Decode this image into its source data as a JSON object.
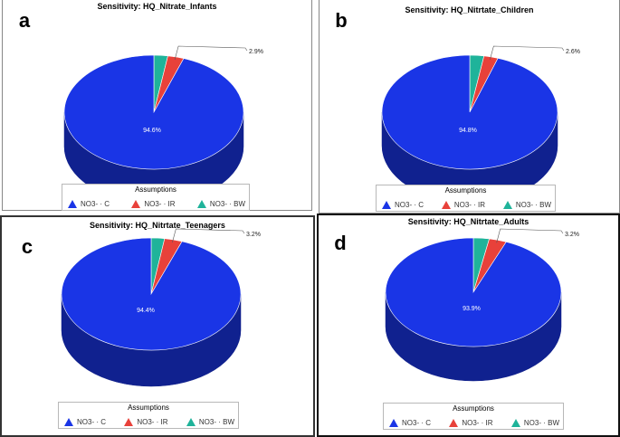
{
  "chart_data": [
    {
      "type": "pie",
      "panel_letter": "a",
      "title": "Sensitivity: HQ_Nitrate_Infants",
      "legend_title": "Assumptions",
      "slices": [
        {
          "label": "NO3- · C",
          "value": 94.6,
          "color": "#1a35e6",
          "data_label": "94.6%"
        },
        {
          "label": "NO3- · IR",
          "value": 2.9,
          "color": "#e8413a",
          "data_label": "2.9%"
        },
        {
          "label": "NO3- · BW",
          "value": 2.5,
          "color": "#1fb39a",
          "data_label": ""
        }
      ]
    },
    {
      "type": "pie",
      "panel_letter": "b",
      "title": "Sensitivity: HQ_Nitrtate_Children",
      "legend_title": "Assumptions",
      "slices": [
        {
          "label": "NO3- · C",
          "value": 94.8,
          "color": "#1a35e6",
          "data_label": "94.8%"
        },
        {
          "label": "NO3- · IR",
          "value": 2.6,
          "color": "#e8413a",
          "data_label": "2.6%"
        },
        {
          "label": "NO3- · BW",
          "value": 2.6,
          "color": "#1fb39a",
          "data_label": ""
        }
      ]
    },
    {
      "type": "pie",
      "panel_letter": "c",
      "title": "Sensitivity: HQ_Nitrtate_Teenagers",
      "legend_title": "Assumptions",
      "slices": [
        {
          "label": "NO3- · C",
          "value": 94.4,
          "color": "#1a35e6",
          "data_label": "94.4%"
        },
        {
          "label": "NO3- · IR",
          "value": 3.2,
          "color": "#e8413a",
          "data_label": "3.2%"
        },
        {
          "label": "NO3- · BW",
          "value": 2.4,
          "color": "#1fb39a",
          "data_label": ""
        }
      ]
    },
    {
      "type": "pie",
      "panel_letter": "d",
      "title": "Sensitivity: HQ_Nitrtate_Adults",
      "legend_title": "Assumptions",
      "slices": [
        {
          "label": "NO3- · C",
          "value": 93.9,
          "color": "#1a35e6",
          "data_label": "93.9%"
        },
        {
          "label": "NO3- · IR",
          "value": 3.2,
          "color": "#e8413a",
          "data_label": "3.2%"
        },
        {
          "label": "NO3- · BW",
          "value": 2.9,
          "color": "#1fb39a",
          "data_label": ""
        }
      ]
    }
  ]
}
